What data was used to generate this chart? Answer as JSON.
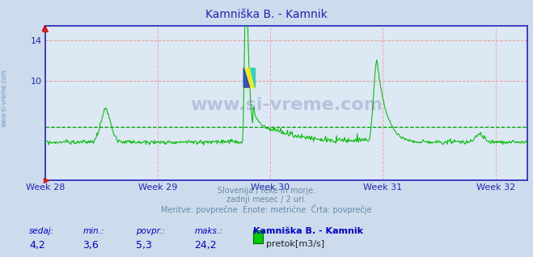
{
  "title": "Kamniška B. - Kamnik",
  "bg_color": "#ccdcec",
  "plot_bg_color": "#dce8f4",
  "line_color": "#00bb00",
  "grid_h_color": "#ee9999",
  "grid_v_color": "#eeaaaa",
  "avg_dashed_color": "#009900",
  "axis_color": "#2222bb",
  "title_color": "#2222bb",
  "week_labels": [
    "Week 28",
    "Week 29",
    "Week 30",
    "Week 31",
    "Week 32"
  ],
  "week_positions": [
    0,
    168,
    336,
    504,
    672
  ],
  "yticks": [
    10,
    14
  ],
  "ymin": 0,
  "ymax": 15.5,
  "xmin": 0,
  "xmax": 720,
  "avg_value": 5.3,
  "min_value": 3.6,
  "max_value": 24.2,
  "current_value": 4.2,
  "footer_line1": "Slovenija / reke in morje.",
  "footer_line2": "zadnji mesec / 2 uri.",
  "footer_line3": "Meritve: povprečne  Enote: metrične  Črta: povprečje",
  "label_sedaj": "sedaj:",
  "label_min": "min.:",
  "label_povpr": "povpr.:",
  "label_maks": "maks.:",
  "station_name": "Kamniška B. - Kamnik",
  "legend_label": "pretok[m3/s]",
  "watermark": "www.si-vreme.com",
  "sidebar_text": "www.si-vreme.com",
  "footer_color": "#6688aa",
  "stats_label_color": "#0000cc",
  "stats_val_color": "#0000cc"
}
